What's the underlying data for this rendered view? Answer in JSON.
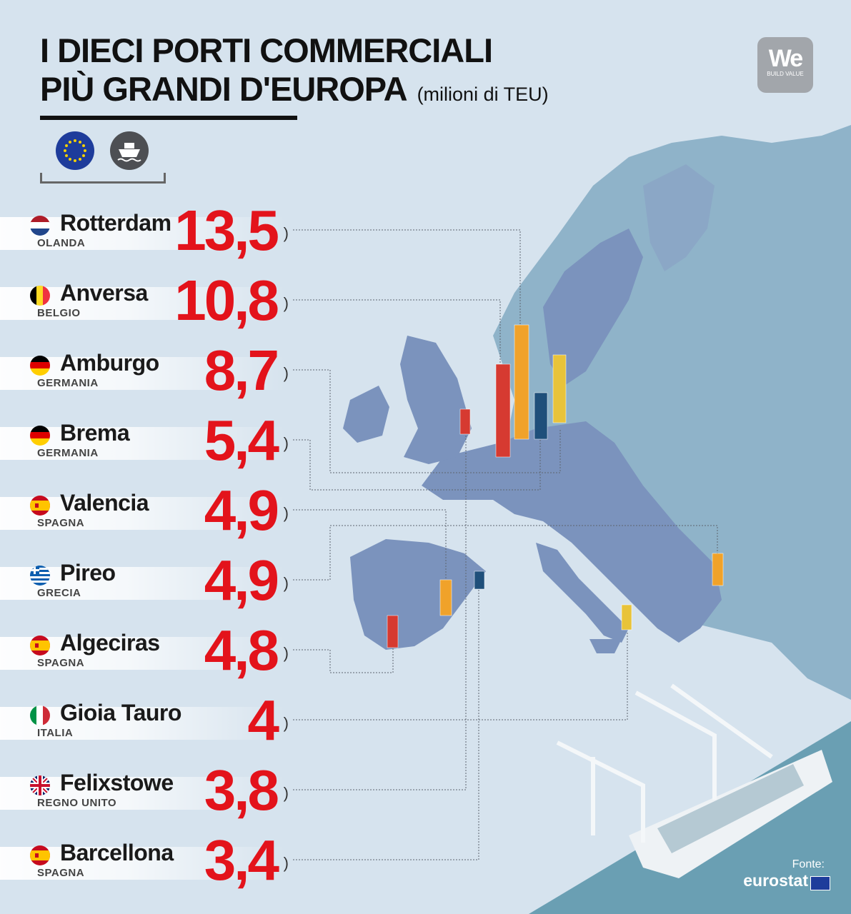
{
  "header": {
    "title_line1": "I DIECI PORTI COMMERCIALI",
    "title_line2": "PIÙ GRANDI D'EUROPA",
    "unit": "(milioni di TEU)"
  },
  "icons": {
    "eu": "eu-flag-icon",
    "ship": "ship-icon"
  },
  "logo": {
    "text": "We",
    "subtitle": "BUILD VALUE"
  },
  "source": {
    "label": "Fonte:",
    "name": "eurostat"
  },
  "colors": {
    "value": "#e3131b",
    "map_land": "#7b93bd",
    "sea": "#d6e3ee",
    "dock_water": "#6a9fb3"
  },
  "chart_data": {
    "type": "bar",
    "title": "I DIECI PORTI COMMERCIALI PIÙ GRANDI D'EUROPA",
    "unit": "milioni di TEU",
    "categories": [
      "Rotterdam",
      "Anversa",
      "Amburgo",
      "Brema",
      "Valencia",
      "Pireo",
      "Algeciras",
      "Gioia Tauro",
      "Felixstowe",
      "Barcellona"
    ],
    "countries": [
      "OLANDA",
      "BELGIO",
      "GERMANIA",
      "GERMANIA",
      "SPAGNA",
      "GRECIA",
      "SPAGNA",
      "ITALIA",
      "REGNO UNITO",
      "SPAGNA"
    ],
    "flags": [
      "nl",
      "be",
      "de",
      "de",
      "es",
      "gr",
      "es",
      "it",
      "gb",
      "es"
    ],
    "values": [
      13.5,
      10.8,
      8.7,
      5.4,
      4.9,
      4.9,
      4.8,
      4,
      3.8,
      3.4
    ],
    "value_labels": [
      "13,5",
      "10,8",
      "8,7",
      "5,4",
      "4,9",
      "4,9",
      "4,8",
      "4",
      "3,8",
      "3,4"
    ]
  }
}
